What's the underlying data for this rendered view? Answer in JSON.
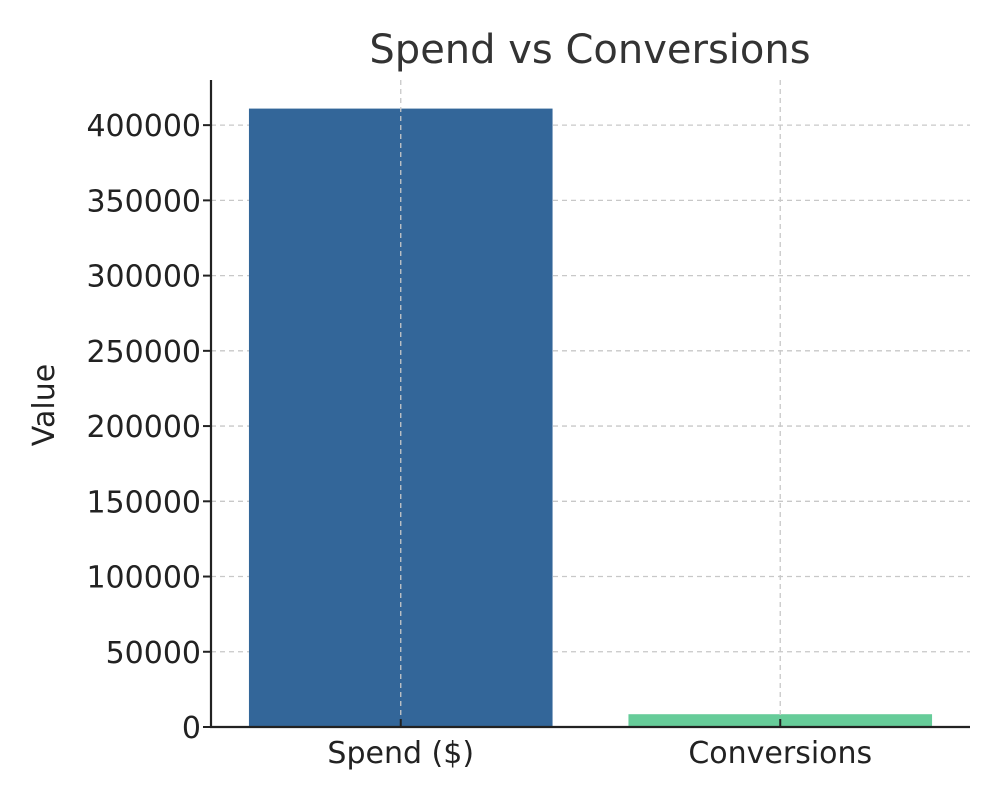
{
  "chart_data": {
    "type": "bar",
    "title": "Spend vs Conversions",
    "xlabel": "",
    "ylabel": "Value",
    "categories": [
      "Spend ($)",
      "Conversions"
    ],
    "values": [
      411000,
      8500
    ],
    "bar_colors": [
      "#336699",
      "#66cc99"
    ],
    "ylim": [
      0,
      430000
    ],
    "yticks": [
      0,
      50000,
      100000,
      150000,
      200000,
      250000,
      300000,
      350000,
      400000
    ],
    "ytick_labels": [
      "0",
      "50000",
      "100000",
      "150000",
      "200000",
      "250000",
      "300000",
      "350000",
      "400000"
    ],
    "grid": true,
    "legend": "none"
  }
}
